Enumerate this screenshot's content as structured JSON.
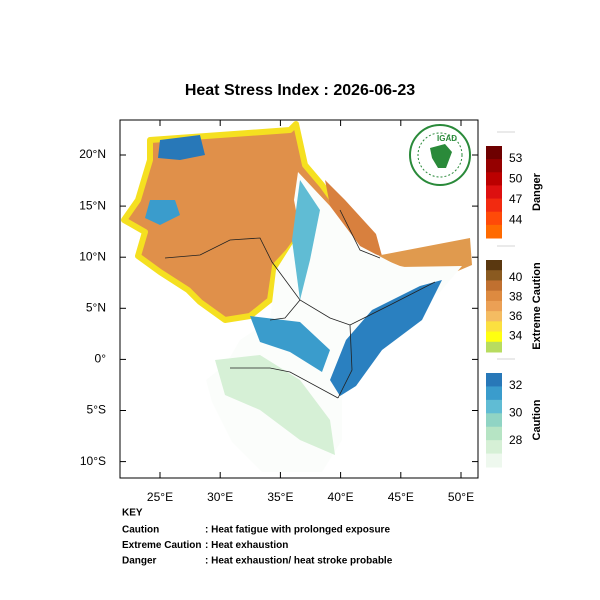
{
  "title": "Heat Stress Index : 2026-06-23",
  "logo": "IGAD",
  "axes": {
    "lon_ticks": [
      "25°E",
      "30°E",
      "35°E",
      "40°E",
      "45°E",
      "50°E"
    ],
    "lat_ticks": [
      "20°N",
      "15°N",
      "10°N",
      "5°N",
      "0°",
      "5°S",
      "10°S"
    ]
  },
  "legend": [
    {
      "title": "Danger",
      "ticks": [
        53,
        50,
        47,
        44
      ],
      "colors": [
        "#6e0000",
        "#950000",
        "#bb0000",
        "#dd1010",
        "#f22a10",
        "#ff4a08",
        "#ff6a00"
      ]
    },
    {
      "title": "Extreme Caution",
      "ticks": [
        40,
        38,
        36,
        34
      ],
      "colors": [
        "#5a3810",
        "#8a5a20",
        "#c07030",
        "#dd8a40",
        "#eba055",
        "#f4bc62",
        "#fbe040",
        "#ffff10",
        "#b8dc60"
      ]
    },
    {
      "title": "Caution",
      "ticks": [
        32,
        30,
        28
      ],
      "colors": [
        "#2878b8",
        "#3a9ccc",
        "#60bcd4",
        "#90d4c4",
        "#b6e4c4",
        "#d6f0d6",
        "#eef8ee"
      ]
    }
  ],
  "key": {
    "heading": "KEY",
    "rows": [
      {
        "label": "Caution",
        "text": ": Heat fatigue with prolonged exposure"
      },
      {
        "label": "Extreme Caution",
        "text": " : Heat exhaustion"
      },
      {
        "label": "Danger",
        "text": ": Heat exhaustion/ heat stroke probable"
      }
    ]
  }
}
